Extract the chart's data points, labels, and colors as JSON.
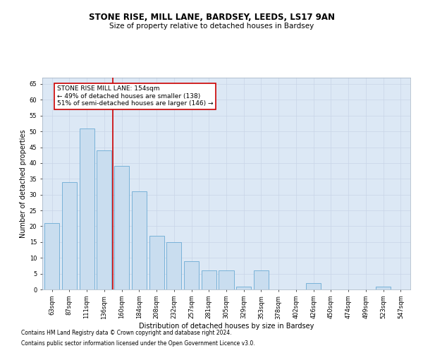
{
  "title1": "STONE RISE, MILL LANE, BARDSEY, LEEDS, LS17 9AN",
  "title2": "Size of property relative to detached houses in Bardsey",
  "xlabel": "Distribution of detached houses by size in Bardsey",
  "ylabel": "Number of detached properties",
  "categories": [
    "63sqm",
    "87sqm",
    "111sqm",
    "136sqm",
    "160sqm",
    "184sqm",
    "208sqm",
    "232sqm",
    "257sqm",
    "281sqm",
    "305sqm",
    "329sqm",
    "353sqm",
    "378sqm",
    "402sqm",
    "426sqm",
    "450sqm",
    "474sqm",
    "499sqm",
    "523sqm",
    "547sqm"
  ],
  "values": [
    21,
    34,
    51,
    44,
    39,
    31,
    17,
    15,
    9,
    6,
    6,
    1,
    6,
    0,
    0,
    2,
    0,
    0,
    0,
    1,
    0
  ],
  "bar_color": "#c9ddef",
  "bar_edge_color": "#6aaad4",
  "vline_color": "#cc0000",
  "annotation_text": "STONE RISE MILL LANE: 154sqm\n← 49% of detached houses are smaller (138)\n51% of semi-detached houses are larger (146) →",
  "annotation_box_color": "white",
  "annotation_box_edge": "#cc0000",
  "ylim": [
    0,
    67
  ],
  "yticks": [
    0,
    5,
    10,
    15,
    20,
    25,
    30,
    35,
    40,
    45,
    50,
    55,
    60,
    65
  ],
  "grid_color": "#c8d4e8",
  "bg_color": "#dce8f5",
  "footer1": "Contains HM Land Registry data © Crown copyright and database right 2024.",
  "footer2": "Contains public sector information licensed under the Open Government Licence v3.0.",
  "title_fontsize": 8.5,
  "subtitle_fontsize": 7.5,
  "axis_label_fontsize": 7,
  "tick_fontsize": 6,
  "annotation_fontsize": 6.5,
  "footer_fontsize": 5.5
}
